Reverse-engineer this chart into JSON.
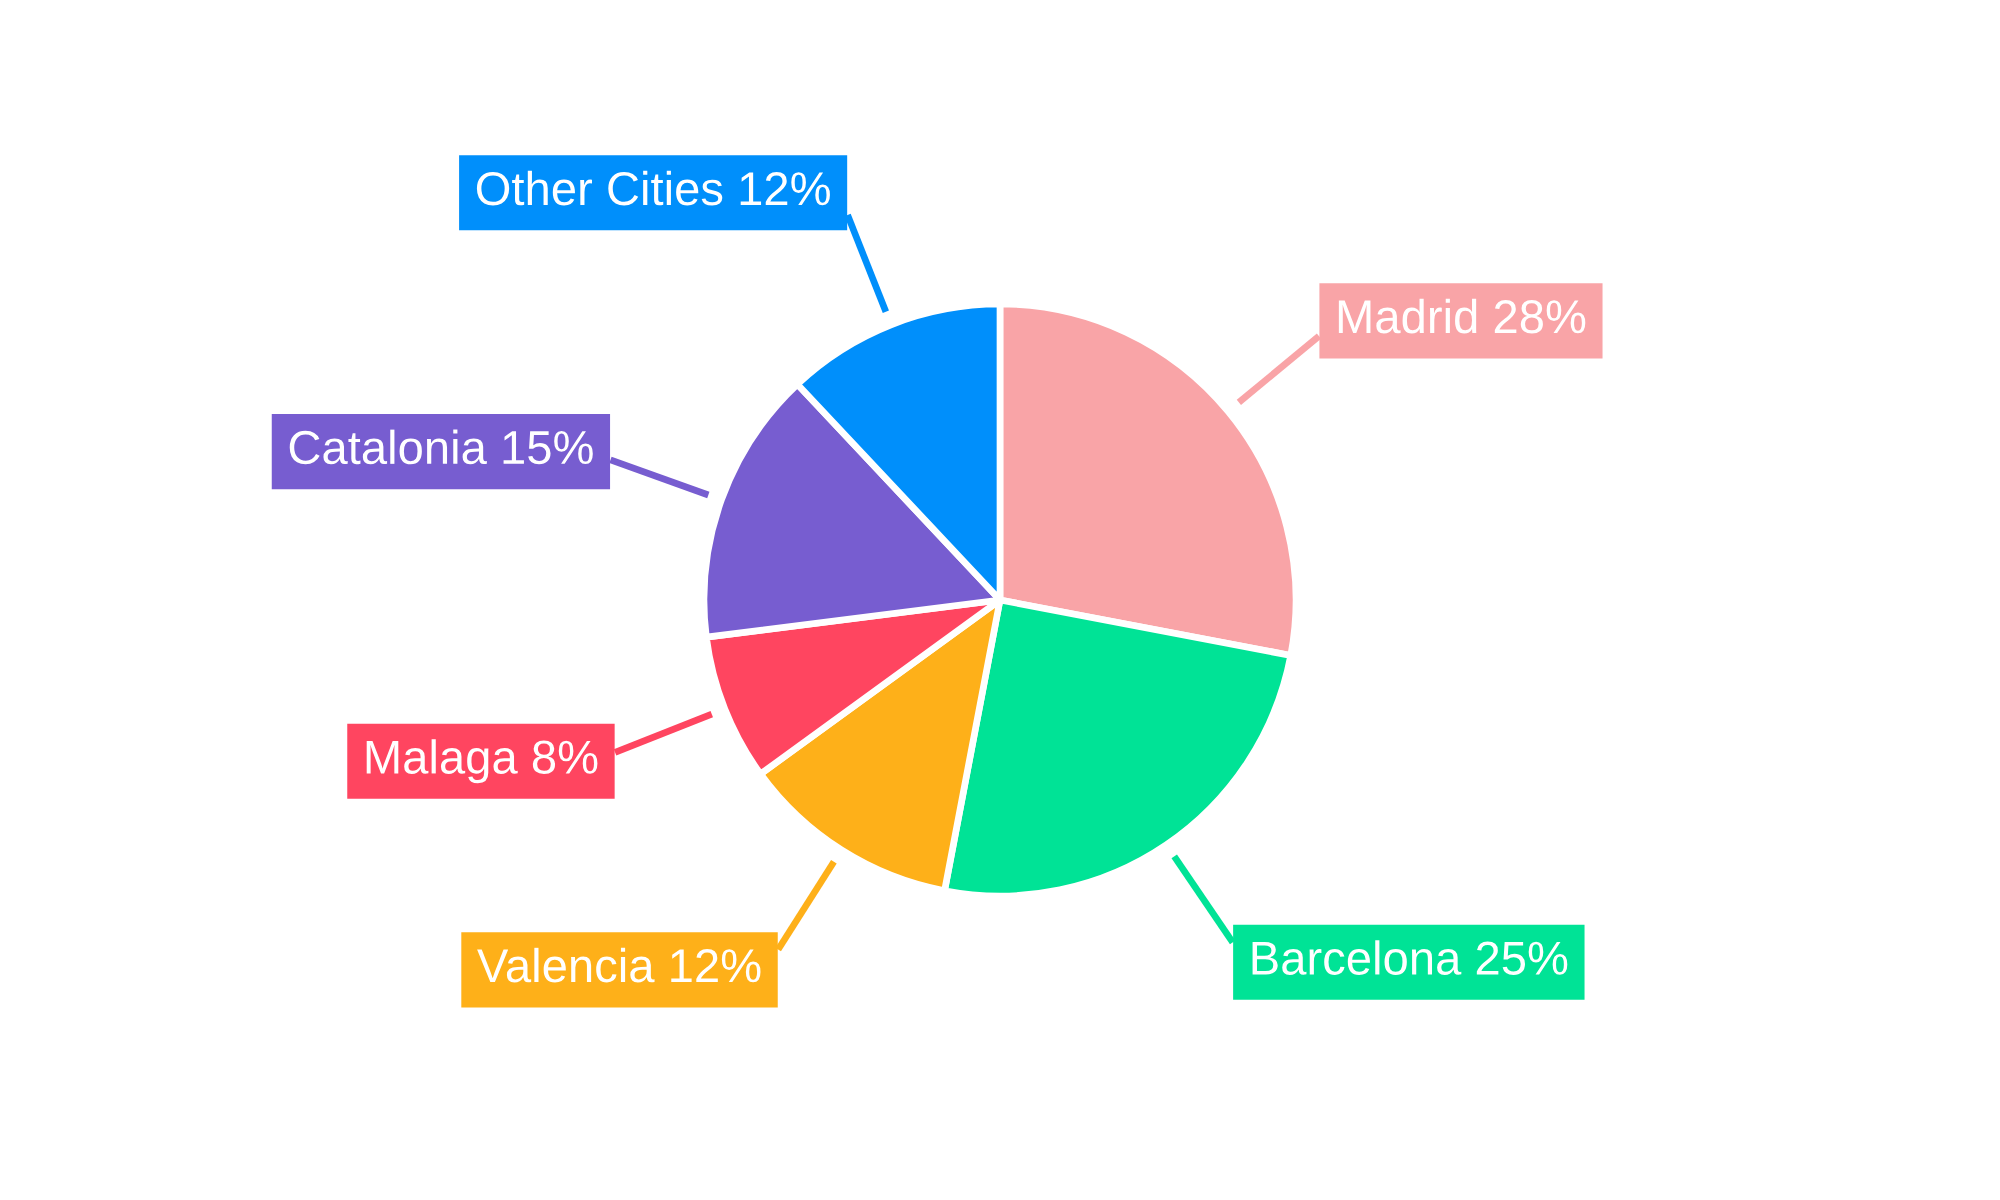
{
  "chart_data": {
    "type": "pie",
    "categories": [
      "Madrid",
      "Barcelona",
      "Valencia",
      "Malaga",
      "Catalonia",
      "Other Cities"
    ],
    "values": [
      28,
      25,
      12,
      8,
      15,
      12
    ],
    "value_labels": [
      "28%",
      "25%",
      "12%",
      "8%",
      "15%",
      "12%"
    ],
    "colors": [
      "#f9a4a7",
      "#00e396",
      "#feb019",
      "#ff4560",
      "#775dd0",
      "#008ffb"
    ]
  }
}
